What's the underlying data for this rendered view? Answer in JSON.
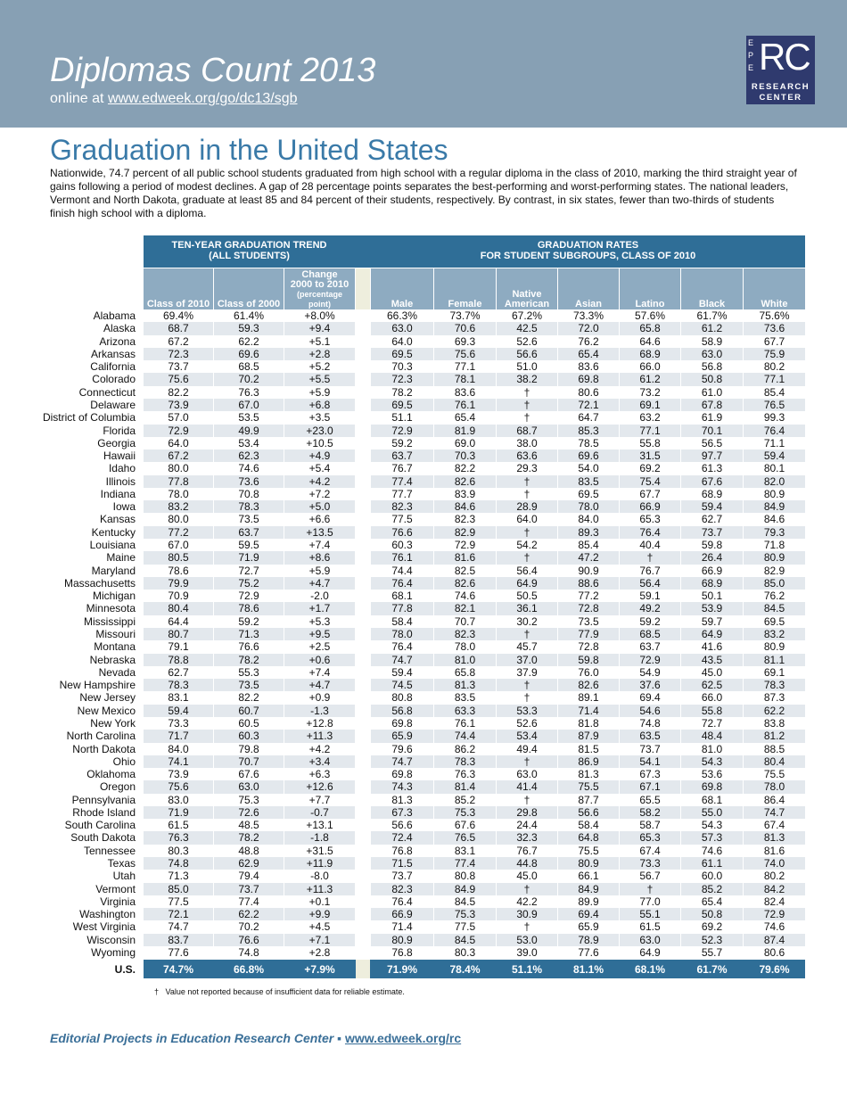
{
  "header": {
    "title": "Diplomas Count 2013",
    "online_prefix": "online at",
    "url": "www.edweek.org/go/dc13/sgb"
  },
  "logo": {
    "letters": [
      "E",
      "P",
      "E"
    ],
    "initials": "RC",
    "line1": "RESEARCH",
    "line2": "CENTER"
  },
  "section_title": "Graduation in the United States",
  "intro": "Nationwide, 74.7 percent of all public school students graduated from high school with a regular diploma in the class of 2010, marking the third straight year of gains following a period of modest declines.  A gap of 28 percentage points separates the best-performing and worst-performing states. The national leaders, Vermont and North Dakota, graduate at least 85 and 84 percent of their students, respectively.  By contrast, in six states, fewer than two-thirds of students finish high school with a diploma.",
  "table": {
    "groups": [
      [
        "TEN-YEAR GRADUATION TREND",
        "(ALL STUDENTS)"
      ],
      [
        "GRADUATION RATES",
        "FOR STUDENT SUBGROUPS, CLASS OF 2010"
      ]
    ],
    "columns": [
      "Class of 2010",
      "Class of 2000",
      [
        "Change",
        "2000 to 2010",
        "(percentage",
        "point)"
      ],
      "Male",
      "Female",
      [
        "Native",
        "American"
      ],
      "Asian",
      "Latino",
      "Black",
      "White"
    ],
    "rows": [
      [
        "Alabama",
        "69.4%",
        "61.4%",
        "+8.0%",
        "66.3%",
        "73.7%",
        "67.2%",
        "73.3%",
        "57.6%",
        "61.7%",
        "75.6%"
      ],
      [
        "Alaska",
        "68.7",
        "59.3",
        "+9.4",
        "63.0",
        "70.6",
        "42.5",
        "72.0",
        "65.8",
        "61.2",
        "73.6"
      ],
      [
        "Arizona",
        "67.2",
        "62.2",
        "+5.1",
        "64.0",
        "69.3",
        "52.6",
        "76.2",
        "64.6",
        "58.9",
        "67.7"
      ],
      [
        "Arkansas",
        "72.3",
        "69.6",
        "+2.8",
        "69.5",
        "75.6",
        "56.6",
        "65.4",
        "68.9",
        "63.0",
        "75.9"
      ],
      [
        "California",
        "73.7",
        "68.5",
        "+5.2",
        "70.3",
        "77.1",
        "51.0",
        "83.6",
        "66.0",
        "56.8",
        "80.2"
      ],
      [
        "Colorado",
        "75.6",
        "70.2",
        "+5.5",
        "72.3",
        "78.1",
        "38.2",
        "69.8",
        "61.2",
        "50.8",
        "77.1"
      ],
      [
        "Connecticut",
        "82.2",
        "76.3",
        "+5.9",
        "78.2",
        "83.6",
        "†",
        "80.6",
        "73.2",
        "61.0",
        "85.4"
      ],
      [
        "Delaware",
        "73.9",
        "67.0",
        "+6.8",
        "69.5",
        "76.1",
        "†",
        "72.1",
        "69.1",
        "67.8",
        "76.5"
      ],
      [
        "District of Columbia",
        "57.0",
        "53.5",
        "+3.5",
        "51.1",
        "65.4",
        "†",
        "64.7",
        "63.2",
        "61.9",
        "99.3"
      ],
      [
        "Florida",
        "72.9",
        "49.9",
        "+23.0",
        "72.9",
        "81.9",
        "68.7",
        "85.3",
        "77.1",
        "70.1",
        "76.4"
      ],
      [
        "Georgia",
        "64.0",
        "53.4",
        "+10.5",
        "59.2",
        "69.0",
        "38.0",
        "78.5",
        "55.8",
        "56.5",
        "71.1"
      ],
      [
        "Hawaii",
        "67.2",
        "62.3",
        "+4.9",
        "63.7",
        "70.3",
        "63.6",
        "69.6",
        "31.5",
        "97.7",
        "59.4"
      ],
      [
        "Idaho",
        "80.0",
        "74.6",
        "+5.4",
        "76.7",
        "82.2",
        "29.3",
        "54.0",
        "69.2",
        "61.3",
        "80.1"
      ],
      [
        "Illinois",
        "77.8",
        "73.6",
        "+4.2",
        "77.4",
        "82.6",
        "†",
        "83.5",
        "75.4",
        "67.6",
        "82.0"
      ],
      [
        "Indiana",
        "78.0",
        "70.8",
        "+7.2",
        "77.7",
        "83.9",
        "†",
        "69.5",
        "67.7",
        "68.9",
        "80.9"
      ],
      [
        "Iowa",
        "83.2",
        "78.3",
        "+5.0",
        "82.3",
        "84.6",
        "28.9",
        "78.0",
        "66.9",
        "59.4",
        "84.9"
      ],
      [
        "Kansas",
        "80.0",
        "73.5",
        "+6.6",
        "77.5",
        "82.3",
        "64.0",
        "84.0",
        "65.3",
        "62.7",
        "84.6"
      ],
      [
        "Kentucky",
        "77.2",
        "63.7",
        "+13.5",
        "76.6",
        "82.9",
        "†",
        "89.3",
        "76.4",
        "73.7",
        "79.3"
      ],
      [
        "Louisiana",
        "67.0",
        "59.5",
        "+7.4",
        "60.3",
        "72.9",
        "54.2",
        "85.4",
        "40.4",
        "59.8",
        "71.8"
      ],
      [
        "Maine",
        "80.5",
        "71.9",
        "+8.6",
        "76.1",
        "81.6",
        "†",
        "47.2",
        "†",
        "26.4",
        "80.9"
      ],
      [
        "Maryland",
        "78.6",
        "72.7",
        "+5.9",
        "74.4",
        "82.5",
        "56.4",
        "90.9",
        "76.7",
        "66.9",
        "82.9"
      ],
      [
        "Massachusetts",
        "79.9",
        "75.2",
        "+4.7",
        "76.4",
        "82.6",
        "64.9",
        "88.6",
        "56.4",
        "68.9",
        "85.0"
      ],
      [
        "Michigan",
        "70.9",
        "72.9",
        "-2.0",
        "68.1",
        "74.6",
        "50.5",
        "77.2",
        "59.1",
        "50.1",
        "76.2"
      ],
      [
        "Minnesota",
        "80.4",
        "78.6",
        "+1.7",
        "77.8",
        "82.1",
        "36.1",
        "72.8",
        "49.2",
        "53.9",
        "84.5"
      ],
      [
        "Mississippi",
        "64.4",
        "59.2",
        "+5.3",
        "58.4",
        "70.7",
        "30.2",
        "73.5",
        "59.2",
        "59.7",
        "69.5"
      ],
      [
        "Missouri",
        "80.7",
        "71.3",
        "+9.5",
        "78.0",
        "82.3",
        "†",
        "77.9",
        "68.5",
        "64.9",
        "83.2"
      ],
      [
        "Montana",
        "79.1",
        "76.6",
        "+2.5",
        "76.4",
        "78.0",
        "45.7",
        "72.8",
        "63.7",
        "41.6",
        "80.9"
      ],
      [
        "Nebraska",
        "78.8",
        "78.2",
        "+0.6",
        "74.7",
        "81.0",
        "37.0",
        "59.8",
        "72.9",
        "43.5",
        "81.1"
      ],
      [
        "Nevada",
        "62.7",
        "55.3",
        "+7.4",
        "59.4",
        "65.8",
        "37.9",
        "76.0",
        "54.9",
        "45.0",
        "69.1"
      ],
      [
        "New Hampshire",
        "78.3",
        "73.5",
        "+4.7",
        "74.5",
        "81.3",
        "†",
        "82.6",
        "37.6",
        "62.5",
        "78.3"
      ],
      [
        "New Jersey",
        "83.1",
        "82.2",
        "+0.9",
        "80.8",
        "83.5",
        "†",
        "89.1",
        "69.4",
        "66.0",
        "87.3"
      ],
      [
        "New Mexico",
        "59.4",
        "60.7",
        "-1.3",
        "56.8",
        "63.3",
        "53.3",
        "71.4",
        "54.6",
        "55.8",
        "62.2"
      ],
      [
        "New York",
        "73.3",
        "60.5",
        "+12.8",
        "69.8",
        "76.1",
        "52.6",
        "81.8",
        "74.8",
        "72.7",
        "83.8"
      ],
      [
        "North Carolina",
        "71.7",
        "60.3",
        "+11.3",
        "65.9",
        "74.4",
        "53.4",
        "87.9",
        "63.5",
        "48.4",
        "81.2"
      ],
      [
        "North Dakota",
        "84.0",
        "79.8",
        "+4.2",
        "79.6",
        "86.2",
        "49.4",
        "81.5",
        "73.7",
        "81.0",
        "88.5"
      ],
      [
        "Ohio",
        "74.1",
        "70.7",
        "+3.4",
        "74.7",
        "78.3",
        "†",
        "86.9",
        "54.1",
        "54.3",
        "80.4"
      ],
      [
        "Oklahoma",
        "73.9",
        "67.6",
        "+6.3",
        "69.8",
        "76.3",
        "63.0",
        "81.3",
        "67.3",
        "53.6",
        "75.5"
      ],
      [
        "Oregon",
        "75.6",
        "63.0",
        "+12.6",
        "74.3",
        "81.4",
        "41.4",
        "75.5",
        "67.1",
        "69.8",
        "78.0"
      ],
      [
        "Pennsylvania",
        "83.0",
        "75.3",
        "+7.7",
        "81.3",
        "85.2",
        "†",
        "87.7",
        "65.5",
        "68.1",
        "86.4"
      ],
      [
        "Rhode Island",
        "71.9",
        "72.6",
        "-0.7",
        "67.3",
        "75.3",
        "29.8",
        "56.6",
        "58.2",
        "55.0",
        "74.7"
      ],
      [
        "South Carolina",
        "61.5",
        "48.5",
        "+13.1",
        "56.6",
        "67.6",
        "24.4",
        "58.4",
        "58.7",
        "54.3",
        "67.4"
      ],
      [
        "South Dakota",
        "76.3",
        "78.2",
        "-1.8",
        "72.4",
        "76.5",
        "32.3",
        "64.8",
        "65.3",
        "57.3",
        "81.3"
      ],
      [
        "Tennessee",
        "80.3",
        "48.8",
        "+31.5",
        "76.8",
        "83.1",
        "76.7",
        "75.5",
        "67.4",
        "74.6",
        "81.6"
      ],
      [
        "Texas",
        "74.8",
        "62.9",
        "+11.9",
        "71.5",
        "77.4",
        "44.8",
        "80.9",
        "73.3",
        "61.1",
        "74.0"
      ],
      [
        "Utah",
        "71.3",
        "79.4",
        "-8.0",
        "73.7",
        "80.8",
        "45.0",
        "66.1",
        "56.7",
        "60.0",
        "80.2"
      ],
      [
        "Vermont",
        "85.0",
        "73.7",
        "+11.3",
        "82.3",
        "84.9",
        "†",
        "84.9",
        "†",
        "85.2",
        "84.2"
      ],
      [
        "Virginia",
        "77.5",
        "77.4",
        "+0.1",
        "76.4",
        "84.5",
        "42.2",
        "89.9",
        "77.0",
        "65.4",
        "82.4"
      ],
      [
        "Washington",
        "72.1",
        "62.2",
        "+9.9",
        "66.9",
        "75.3",
        "30.9",
        "69.4",
        "55.1",
        "50.8",
        "72.9"
      ],
      [
        "West Virginia",
        "74.7",
        "70.2",
        "+4.5",
        "71.4",
        "77.5",
        "†",
        "65.9",
        "61.5",
        "69.2",
        "74.6"
      ],
      [
        "Wisconsin",
        "83.7",
        "76.6",
        "+7.1",
        "80.9",
        "84.5",
        "53.0",
        "78.9",
        "63.0",
        "52.3",
        "87.4"
      ],
      [
        "Wyoming",
        "77.6",
        "74.8",
        "+2.8",
        "76.8",
        "80.3",
        "39.0",
        "77.6",
        "64.9",
        "55.7",
        "80.6"
      ]
    ],
    "total": [
      "U.S.",
      "74.7%",
      "66.8%",
      "+7.9%",
      "71.9%",
      "78.4%",
      "51.1%",
      "81.1%",
      "68.1%",
      "61.7%",
      "79.6%"
    ]
  },
  "footnote": {
    "symbol": "†",
    "text": "Value not reported because of insufficient data for reliable estimate."
  },
  "footer": {
    "org": "Editorial Projects in Education Research Center",
    "separator": "▪",
    "url": "www.edweek.org/rc"
  }
}
